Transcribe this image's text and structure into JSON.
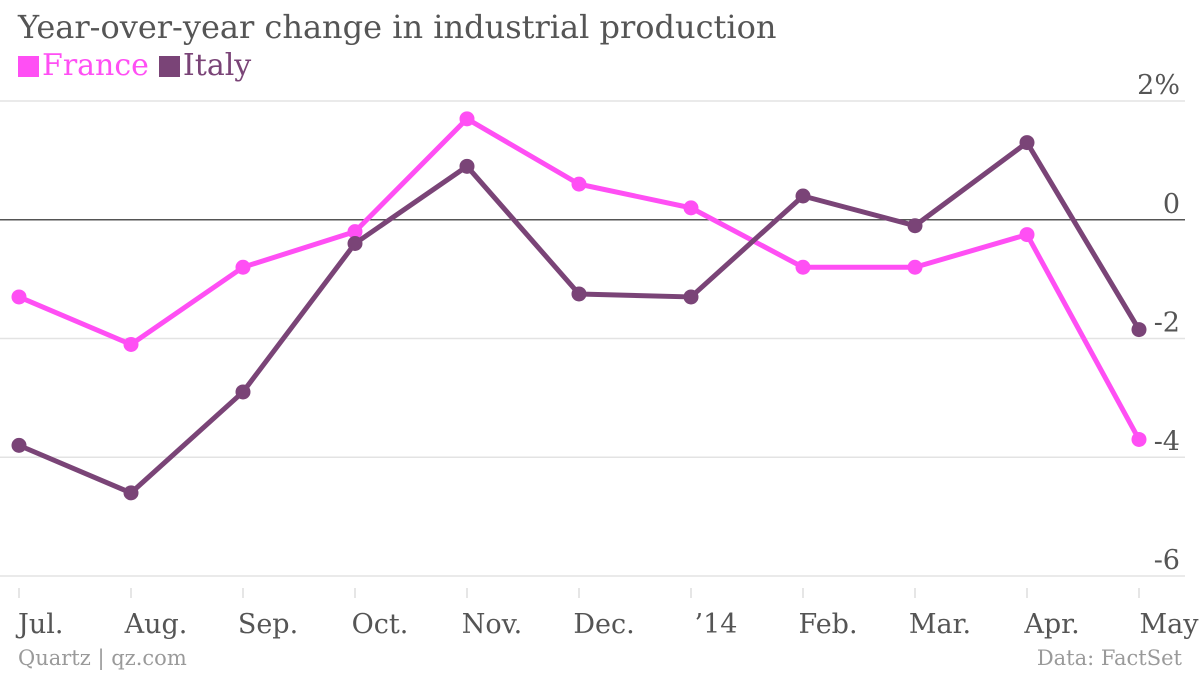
{
  "title": "Year-over-year change in industrial production",
  "footer": {
    "source_left": "Quartz | qz.com",
    "source_right": "Data: FactSet"
  },
  "colors": {
    "france": "#ff4ff4",
    "italy": "#7a4477",
    "grid": "#e3e3e3",
    "zero_line": "#555555",
    "text": "#555555",
    "muted": "#9a9a9a"
  },
  "chart_data": {
    "type": "line",
    "title": "Year-over-year change in industrial production",
    "categories": [
      "Jul.",
      "Aug.",
      "Sep.",
      "Oct.",
      "Nov.",
      "Dec.",
      "’14",
      "Feb.",
      "Mar.",
      "Apr.",
      "May"
    ],
    "series": [
      {
        "name": "France",
        "color": "#ff4ff4",
        "values": [
          -1.3,
          -2.1,
          -0.8,
          -0.2,
          1.7,
          0.6,
          0.2,
          -0.8,
          -0.8,
          -0.25,
          -3.7
        ]
      },
      {
        "name": "Italy",
        "color": "#7a4477",
        "values": [
          -3.8,
          -4.6,
          -2.9,
          -0.4,
          0.9,
          -1.25,
          -1.3,
          0.4,
          -0.1,
          1.3,
          -1.85
        ]
      }
    ],
    "y_ticks": [
      {
        "value": 2,
        "label": "2%"
      },
      {
        "value": 0,
        "label": "0"
      },
      {
        "value": -2,
        "label": "-2"
      },
      {
        "value": -4,
        "label": "-4"
      },
      {
        "value": -6,
        "label": "-6"
      }
    ],
    "ylim": [
      -6,
      2
    ],
    "grid": true,
    "legend_position": "top-left",
    "xlabel": "",
    "ylabel": ""
  }
}
